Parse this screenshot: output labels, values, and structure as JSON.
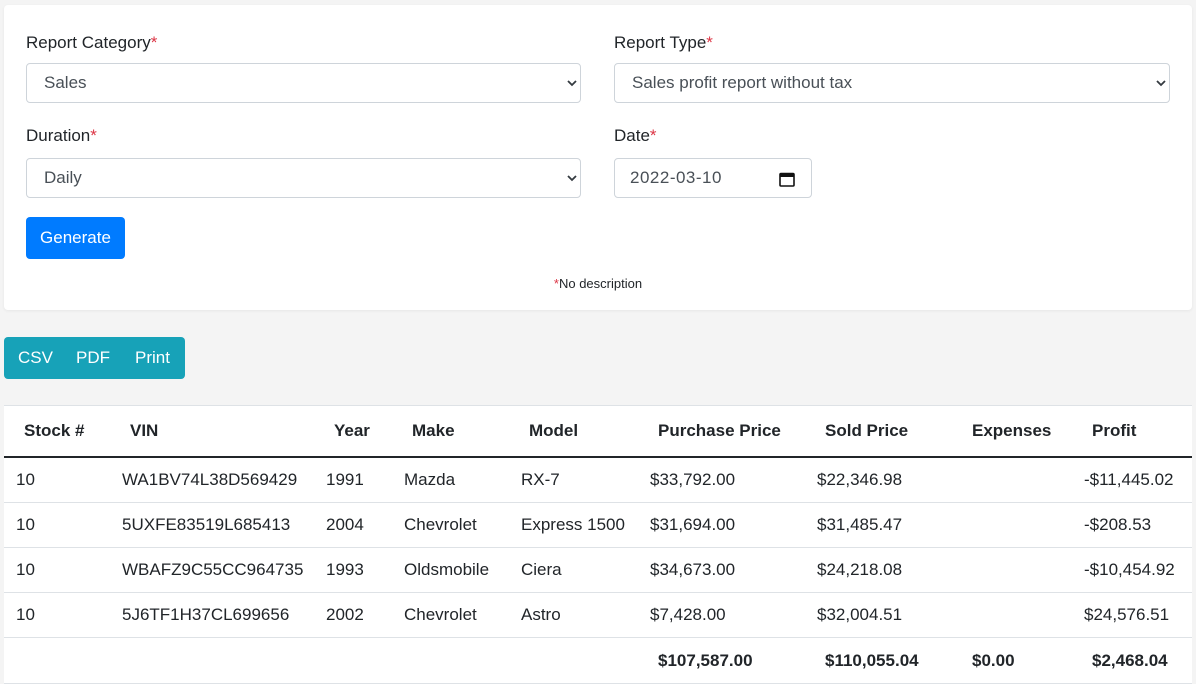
{
  "form": {
    "report_category": {
      "label": "Report Category",
      "required_mark": "*",
      "value": "Sales"
    },
    "report_type": {
      "label": "Report Type",
      "required_mark": "*",
      "value": "Sales profit report without tax"
    },
    "duration": {
      "label": "Duration",
      "required_mark": "*",
      "value": "Daily"
    },
    "date": {
      "label": "Date",
      "required_mark": "*",
      "value": "2022-03-10"
    },
    "generate_label": "Generate",
    "note_mark": "*",
    "note_text": "No description"
  },
  "export": {
    "csv_label": "CSV",
    "pdf_label": "PDF",
    "print_label": "Print"
  },
  "table": {
    "headers": [
      "Stock #",
      "VIN",
      "Year",
      "Make",
      "Model",
      "Purchase Price",
      "Sold Price",
      "Expenses",
      "Profit"
    ],
    "rows": [
      [
        "10",
        "WA1BV74L38D569429",
        "1991",
        "Mazda",
        "RX-7",
        "$33,792.00",
        "$22,346.98",
        "",
        "-$11,445.02"
      ],
      [
        "10",
        "5UXFE83519L685413",
        "2004",
        "Chevrolet",
        "Express 1500",
        "$31,694.00",
        "$31,485.47",
        "",
        "-$208.53"
      ],
      [
        "10",
        "WBAFZ9C55CC964735",
        "1993",
        "Oldsmobile",
        "Ciera",
        "$34,673.00",
        "$24,218.08",
        "",
        "-$10,454.92"
      ],
      [
        "10",
        "5J6TF1H37CL699656",
        "2002",
        "Chevrolet",
        "Astro",
        "$7,428.00",
        "$32,004.51",
        "",
        "$24,576.51"
      ]
    ],
    "totals": [
      "",
      "",
      "",
      "",
      "",
      "$107,587.00",
      "$110,055.04",
      "$0.00",
      "$2,468.04"
    ]
  },
  "colors": {
    "primary": "#007bff",
    "info": "#17a2b8",
    "required": "#dc3545"
  },
  "icons": {
    "select_arrow": "chevron-down-icon",
    "date_picker": "calendar-icon"
  }
}
